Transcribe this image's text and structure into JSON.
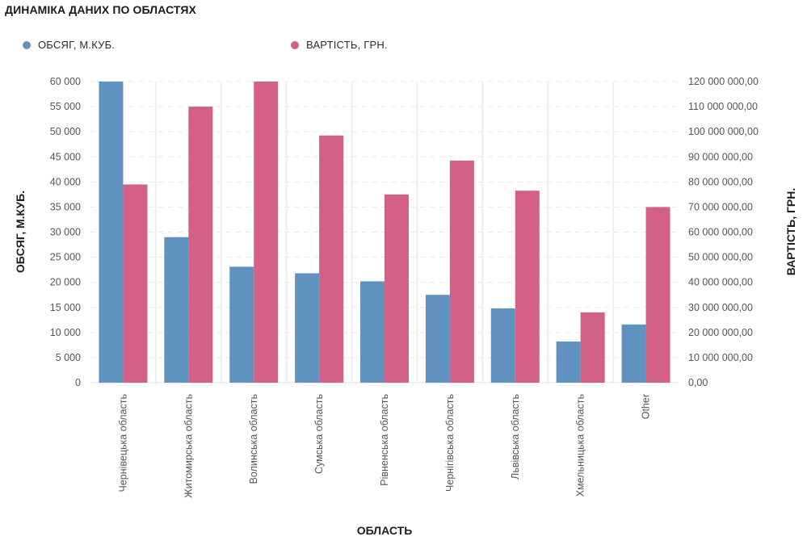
{
  "title": "ДИНАМІКА ДАНИХ ПО ОБЛАСТЯХ",
  "legend": [
    {
      "label": "ОБСЯГ, М.КУБ.",
      "color": "#6092c0"
    },
    {
      "label": "ВАРТІСТЬ, ГРН.",
      "color": "#d36086"
    }
  ],
  "chart_data": {
    "type": "bar",
    "title": "ДИНАМІКА ДАНИХ ПО ОБЛАСТЯХ",
    "xlabel": "ОБЛАСТЬ",
    "ylabel": "ОБСЯГ, М.КУБ.",
    "y2label": "ВАРТІСТЬ, ГРН.",
    "ylim": [
      0,
      60000
    ],
    "y2lim": [
      0,
      120000000
    ],
    "yticks": [
      "0",
      "5 000",
      "10 000",
      "15 000",
      "20 000",
      "25 000",
      "30 000",
      "35 000",
      "40 000",
      "45 000",
      "50 000",
      "55 000",
      "60 000"
    ],
    "y2ticks": [
      "0,00",
      "10 000 000,00",
      "20 000 000,00",
      "30 000 000,00",
      "40 000 000,00",
      "50 000 000,00",
      "60 000 000,00",
      "70 000 000,00",
      "80 000 000,00",
      "90 000 000,00",
      "100 000 000,00",
      "110 000 000,00",
      "120 000 000,00"
    ],
    "categories": [
      "Чернівецька область",
      "Житомирська область",
      "Волинська область",
      "Сумська область",
      "Рівненська область",
      "Чернігівська область",
      "Львівська область",
      "Хмельницька область",
      "Other"
    ],
    "legend_position": "top",
    "grid": true,
    "series": [
      {
        "name": "ОБСЯГ, М.КУБ.",
        "axis": "left",
        "color": "#6092c0",
        "values": [
          60500,
          29000,
          23100,
          21800,
          20200,
          17500,
          14800,
          8200,
          11600
        ]
      },
      {
        "name": "ВАРТІСТЬ, ГРН.",
        "axis": "right",
        "color": "#d36086",
        "values": [
          79000000,
          110000000,
          121000000,
          98500000,
          75000000,
          88500000,
          76500000,
          28000000,
          70000000
        ]
      }
    ]
  }
}
